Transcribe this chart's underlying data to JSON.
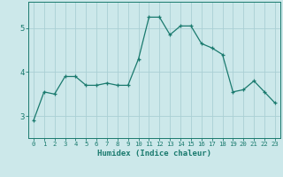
{
  "x": [
    0,
    1,
    2,
    3,
    4,
    5,
    6,
    7,
    8,
    9,
    10,
    11,
    12,
    13,
    14,
    15,
    16,
    17,
    18,
    19,
    20,
    21,
    22,
    23
  ],
  "y": [
    2.9,
    3.55,
    3.5,
    3.9,
    3.9,
    3.7,
    3.7,
    3.75,
    3.7,
    3.7,
    4.3,
    5.25,
    5.25,
    4.85,
    5.05,
    5.05,
    4.65,
    4.55,
    4.4,
    3.55,
    3.6,
    3.8,
    3.55,
    3.3
  ],
  "xlabel": "Humidex (Indice chaleur)",
  "line_color": "#1a7a6e",
  "bg_color": "#cce8ea",
  "grid_color": "#aacfd4",
  "tick_label_color": "#1a7a6e",
  "xlabel_color": "#1a7a6e",
  "ylim": [
    2.5,
    5.6
  ],
  "xlim": [
    -0.5,
    23.5
  ],
  "yticks": [
    3,
    4,
    5
  ],
  "xticks": [
    0,
    1,
    2,
    3,
    4,
    5,
    6,
    7,
    8,
    9,
    10,
    11,
    12,
    13,
    14,
    15,
    16,
    17,
    18,
    19,
    20,
    21,
    22,
    23
  ],
  "figsize": [
    3.2,
    2.0
  ],
  "dpi": 100
}
